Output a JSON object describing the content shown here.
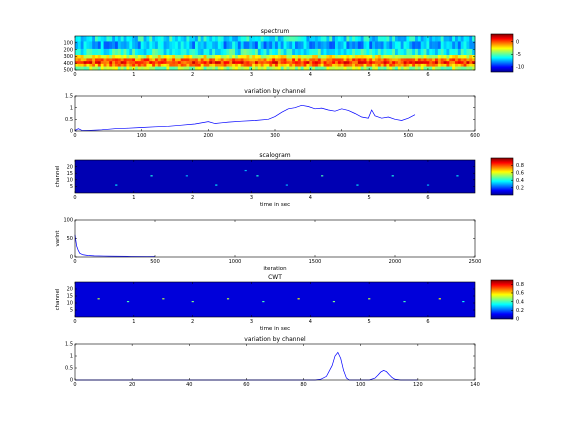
{
  "chart_data": [
    {
      "type": "heatmap",
      "title": "spectrum",
      "xlabel": "",
      "ylabel": "",
      "xlim": [
        0,
        6.8
      ],
      "ylim": [
        0,
        500
      ],
      "x_ticks": [
        0,
        1,
        2,
        3,
        4,
        5,
        6
      ],
      "y_ticks": [
        100,
        200,
        300,
        400,
        500
      ],
      "colorbar": {
        "ticks": [
          0,
          -5,
          -10
        ],
        "range": [
          -12,
          3
        ]
      },
      "band_rows": [
        {
          "from": 0,
          "to": 80,
          "value": -6.5
        },
        {
          "from": 80,
          "to": 190,
          "value": -7.5
        },
        {
          "from": 190,
          "to": 280,
          "value": -6
        },
        {
          "from": 280,
          "to": 330,
          "value": -3
        },
        {
          "from": 330,
          "to": 370,
          "value": -0.5
        },
        {
          "from": 370,
          "to": 410,
          "value": 0.5
        },
        {
          "from": 410,
          "to": 450,
          "value": -1
        },
        {
          "from": 450,
          "to": 500,
          "value": -4
        }
      ]
    },
    {
      "type": "line",
      "title": "variation by channel",
      "xlabel": "",
      "ylabel": "",
      "xlim": [
        0,
        600
      ],
      "ylim": [
        0,
        1.5
      ],
      "x_ticks": [
        0,
        100,
        200,
        300,
        400,
        500,
        600
      ],
      "y_ticks": [
        0,
        0.5,
        1,
        1.5
      ],
      "y_tick_labels": [
        "0",
        "0.5",
        "1",
        "1.5"
      ],
      "x": [
        0,
        5,
        10,
        20,
        40,
        60,
        80,
        100,
        120,
        140,
        160,
        180,
        200,
        210,
        220,
        230,
        250,
        270,
        290,
        300,
        310,
        320,
        330,
        340,
        350,
        360,
        370,
        380,
        390,
        400,
        410,
        420,
        430,
        440,
        445,
        450,
        460,
        470,
        480,
        490,
        500,
        510
      ],
      "y": [
        0.02,
        0.1,
        0.03,
        0.02,
        0.05,
        0.1,
        0.12,
        0.15,
        0.18,
        0.2,
        0.25,
        0.3,
        0.4,
        0.32,
        0.35,
        0.38,
        0.42,
        0.45,
        0.5,
        0.62,
        0.8,
        0.95,
        1.0,
        1.1,
        1.05,
        0.95,
        0.98,
        0.9,
        0.85,
        0.95,
        0.88,
        0.75,
        0.6,
        0.55,
        0.9,
        0.65,
        0.55,
        0.6,
        0.5,
        0.45,
        0.55,
        0.7
      ]
    },
    {
      "type": "heatmap",
      "title": "scalogram",
      "xlabel": "time in sec",
      "ylabel": "channel",
      "xlim": [
        0,
        6.8
      ],
      "ylim": [
        0,
        25
      ],
      "x_ticks": [
        0,
        1,
        2,
        3,
        4,
        5,
        6
      ],
      "y_ticks": [
        5,
        10,
        15,
        20
      ],
      "y_tick_labels": [
        "20",
        "15",
        "10",
        "5"
      ],
      "colorbar": {
        "ticks": [
          0.8,
          0.6,
          0.4,
          0.2
        ],
        "range": [
          0,
          1
        ]
      },
      "background_value": 0.05,
      "speckles": [
        {
          "t": 0.7,
          "ch": 19,
          "v": 0.35
        },
        {
          "t": 1.3,
          "ch": 12,
          "v": 0.4
        },
        {
          "t": 1.9,
          "ch": 12,
          "v": 0.3
        },
        {
          "t": 2.4,
          "ch": 19,
          "v": 0.35
        },
        {
          "t": 3.1,
          "ch": 12,
          "v": 0.4
        },
        {
          "t": 3.6,
          "ch": 19,
          "v": 0.3
        },
        {
          "t": 4.2,
          "ch": 12,
          "v": 0.45
        },
        {
          "t": 4.8,
          "ch": 19,
          "v": 0.35
        },
        {
          "t": 5.4,
          "ch": 12,
          "v": 0.4
        },
        {
          "t": 6.0,
          "ch": 19,
          "v": 0.3
        },
        {
          "t": 6.5,
          "ch": 12,
          "v": 0.35
        },
        {
          "t": 2.9,
          "ch": 8,
          "v": 0.3
        }
      ]
    },
    {
      "type": "line",
      "title": "",
      "xlabel": "iteration",
      "ylabel": "varlnt",
      "xlim": [
        0,
        2500
      ],
      "ylim": [
        0,
        100
      ],
      "x_ticks": [
        0,
        500,
        1000,
        1500,
        2000,
        2500
      ],
      "y_ticks": [
        0,
        50,
        100
      ],
      "x": [
        0,
        5,
        10,
        20,
        30,
        50,
        80,
        120,
        180,
        250,
        350,
        450,
        500
      ],
      "y": [
        60,
        45,
        30,
        18,
        10,
        6,
        4,
        3,
        2.5,
        2,
        1.5,
        1.2,
        1
      ]
    },
    {
      "type": "heatmap",
      "title": "CWT",
      "xlabel": "time in sec",
      "ylabel": "channel",
      "xlim": [
        0,
        6.8
      ],
      "ylim": [
        0,
        25
      ],
      "x_ticks": [
        0,
        1,
        2,
        3,
        4,
        5,
        6
      ],
      "y_ticks": [
        5,
        10,
        15,
        20
      ],
      "y_tick_labels": [
        "20",
        "15",
        "10",
        "5"
      ],
      "colorbar": {
        "ticks": [
          0.8,
          0.6,
          0.4,
          0.2,
          0
        ],
        "range": [
          0,
          0.9
        ]
      },
      "background_value": 0.08,
      "speckles": [
        {
          "t": 0.4,
          "ch": 12,
          "v": 0.5
        },
        {
          "t": 0.9,
          "ch": 14,
          "v": 0.4
        },
        {
          "t": 1.5,
          "ch": 12,
          "v": 0.5
        },
        {
          "t": 2.0,
          "ch": 14,
          "v": 0.45
        },
        {
          "t": 2.6,
          "ch": 12,
          "v": 0.5
        },
        {
          "t": 3.2,
          "ch": 14,
          "v": 0.4
        },
        {
          "t": 3.8,
          "ch": 12,
          "v": 0.55
        },
        {
          "t": 4.4,
          "ch": 14,
          "v": 0.45
        },
        {
          "t": 5.0,
          "ch": 12,
          "v": 0.5
        },
        {
          "t": 5.6,
          "ch": 14,
          "v": 0.4
        },
        {
          "t": 6.2,
          "ch": 12,
          "v": 0.55
        },
        {
          "t": 6.6,
          "ch": 14,
          "v": 0.35
        }
      ]
    },
    {
      "type": "line",
      "title": "variation by channel",
      "xlabel": "",
      "ylabel": "",
      "xlim": [
        0,
        140
      ],
      "ylim": [
        0,
        1.5
      ],
      "x_ticks": [
        0,
        20,
        40,
        60,
        80,
        100,
        120,
        140
      ],
      "y_ticks": [
        0,
        0.5,
        1,
        1.5
      ],
      "y_tick_labels": [
        "0",
        "0.5",
        "1",
        "1.5"
      ],
      "x": [
        0,
        80,
        84,
        86,
        88,
        90,
        91,
        92,
        93,
        94,
        95,
        96,
        97,
        98,
        100,
        103,
        105,
        106,
        107,
        108,
        109,
        110,
        111,
        112,
        114,
        120
      ],
      "y": [
        0,
        0,
        0,
        0.03,
        0.15,
        0.6,
        1.0,
        1.15,
        0.9,
        0.4,
        0.08,
        0,
        0,
        0,
        0,
        0,
        0.08,
        0.2,
        0.33,
        0.4,
        0.35,
        0.22,
        0.1,
        0.03,
        0,
        0
      ]
    }
  ]
}
